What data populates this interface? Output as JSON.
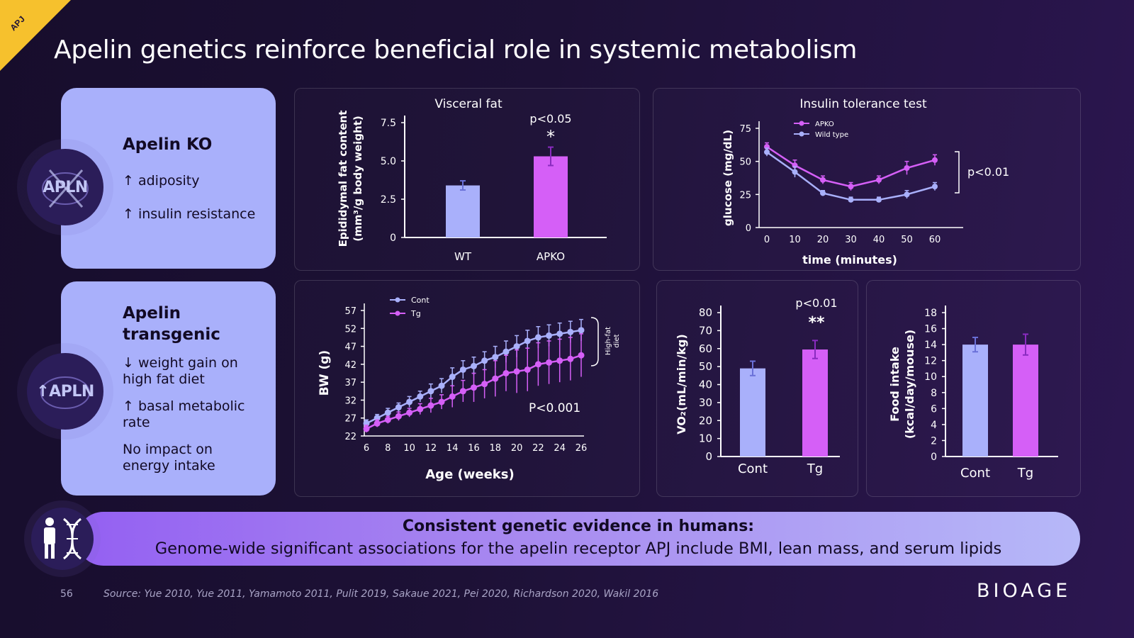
{
  "corner_tag": "APJ",
  "title": "Apelin genetics reinforce beneficial role in systemic metabolism",
  "colors": {
    "wt": "#a9b0fb",
    "ko": "#d55ff7",
    "accent": "#f6c12d"
  },
  "card_ko": {
    "icon_label": "APLN",
    "heading": "Apelin KO",
    "items": [
      "↑ adiposity",
      "↑ insulin resistance"
    ]
  },
  "card_tg": {
    "icon_label": "↑APLN",
    "heading_line1": "Apelin",
    "heading_line2": "transgenic",
    "items": [
      {
        "line1": "↓ weight gain on",
        "line2": "high fat diet"
      },
      {
        "line1": "↑ basal metabolic",
        "line2": "rate"
      },
      {
        "line1": "No impact on",
        "line2": "energy intake"
      }
    ]
  },
  "chart_data": [
    {
      "id": "visceral_fat",
      "type": "bar",
      "title": "Visceral fat",
      "ylabel_line1": "Epididymal fat content",
      "ylabel_line2": "(mm³/g body weight)",
      "categories": [
        "WT",
        "APKO"
      ],
      "values": [
        3.4,
        5.3
      ],
      "errors": [
        0.3,
        0.6
      ],
      "yticks": [
        "0",
        "2.5",
        "5.0",
        "7.5"
      ],
      "ylim": [
        0,
        7.5
      ],
      "annotation": "p<0.05",
      "significance": "*"
    },
    {
      "id": "itt",
      "type": "line",
      "title": "Insulin tolerance test",
      "xlabel": "time (minutes)",
      "ylabel": "glucose (mg/dL)",
      "x": [
        0,
        10,
        20,
        30,
        40,
        50,
        60
      ],
      "xticks": [
        "0",
        "10",
        "20",
        "30",
        "40",
        "50",
        "60"
      ],
      "yticks": [
        "0",
        "25",
        "50",
        "75"
      ],
      "ylim": [
        0,
        75
      ],
      "series": [
        {
          "name": "APKO",
          "values": [
            61,
            47,
            36,
            31,
            36,
            45,
            51
          ],
          "errors": [
            3,
            4,
            3,
            3,
            3,
            5,
            4
          ]
        },
        {
          "name": "Wild type",
          "values": [
            57,
            42,
            26,
            21,
            21,
            25,
            31
          ],
          "errors": [
            3,
            4,
            2,
            2,
            2,
            3,
            3
          ]
        }
      ],
      "annotation": "p<0.01",
      "legend": "top-left"
    },
    {
      "id": "bw",
      "type": "line",
      "xlabel": "Age (weeks)",
      "ylabel": "BW (g)",
      "x": [
        6,
        7,
        8,
        9,
        10,
        11,
        12,
        13,
        14,
        15,
        16,
        17,
        18,
        19,
        20,
        21,
        22,
        23,
        24,
        25,
        26
      ],
      "xticks": [
        "6",
        "8",
        "10",
        "12",
        "14",
        "16",
        "18",
        "20",
        "22",
        "24",
        "26"
      ],
      "yticks": [
        "22",
        "27",
        "32",
        "37",
        "42",
        "47",
        "52",
        "57"
      ],
      "ylim": [
        22,
        57
      ],
      "series": [
        {
          "name": "Cont",
          "values": [
            25.5,
            27,
            28.5,
            30,
            31.5,
            33,
            34.5,
            36,
            38.5,
            40.5,
            41.5,
            43,
            44,
            45.5,
            47,
            48.5,
            49.5,
            50,
            50.5,
            51,
            51.5
          ],
          "errors": [
            1,
            1,
            1.2,
            1.2,
            1.5,
            1.5,
            2,
            2,
            2.5,
            2.5,
            2.5,
            2.5,
            3,
            3,
            3,
            3,
            3,
            3,
            3,
            3,
            3
          ]
        },
        {
          "name": "Tg",
          "values": [
            24,
            25.5,
            26.5,
            27.5,
            28.5,
            29.5,
            30.5,
            31.5,
            33,
            34.5,
            35.5,
            36.5,
            38,
            39.5,
            40,
            40.5,
            42,
            42.5,
            43,
            43.5,
            44.5
          ],
          "errors": [
            1,
            1,
            1,
            1.2,
            1.2,
            1.5,
            2,
            2,
            3,
            3,
            4,
            4,
            5,
            5,
            6,
            6,
            6,
            6,
            6,
            6,
            6
          ]
        }
      ],
      "annotation": "P<0.001",
      "bracket_label_line1": "High-fat",
      "bracket_label_line2": "diet",
      "legend": "top-left"
    },
    {
      "id": "vo2",
      "type": "bar",
      "ylabel": "VO₂(mL/min/kg)",
      "categories": [
        "Cont",
        "Tg"
      ],
      "values": [
        49,
        59.5
      ],
      "errors": [
        4,
        5
      ],
      "yticks": [
        "0",
        "10",
        "20",
        "30",
        "40",
        "50",
        "60",
        "70",
        "80"
      ],
      "ylim": [
        0,
        80
      ],
      "annotation": "p<0.01",
      "significance": "**"
    },
    {
      "id": "food",
      "type": "bar",
      "ylabel_line1": "Food intake",
      "ylabel_line2": "(kcal/day/mouse)",
      "categories": [
        "Cont",
        "Tg"
      ],
      "values": [
        14,
        14
      ],
      "errors": [
        0.9,
        1.3
      ],
      "yticks": [
        "0",
        "2",
        "4",
        "6",
        "8",
        "10",
        "12",
        "14",
        "16",
        "18"
      ],
      "ylim": [
        0,
        18
      ]
    }
  ],
  "banner": {
    "line1": "Consistent genetic evidence in humans:",
    "line2": "Genome-wide significant associations for the apelin receptor APJ include BMI, lean mass, and serum lipids"
  },
  "footer": {
    "page": "56",
    "source": "Source: Yue 2010, Yue 2011, Yamamoto 2011, Pulit 2019, Sakaue 2021, Pei 2020, Richardson 2020, Wakil 2016",
    "logo": "BIOAGE"
  }
}
